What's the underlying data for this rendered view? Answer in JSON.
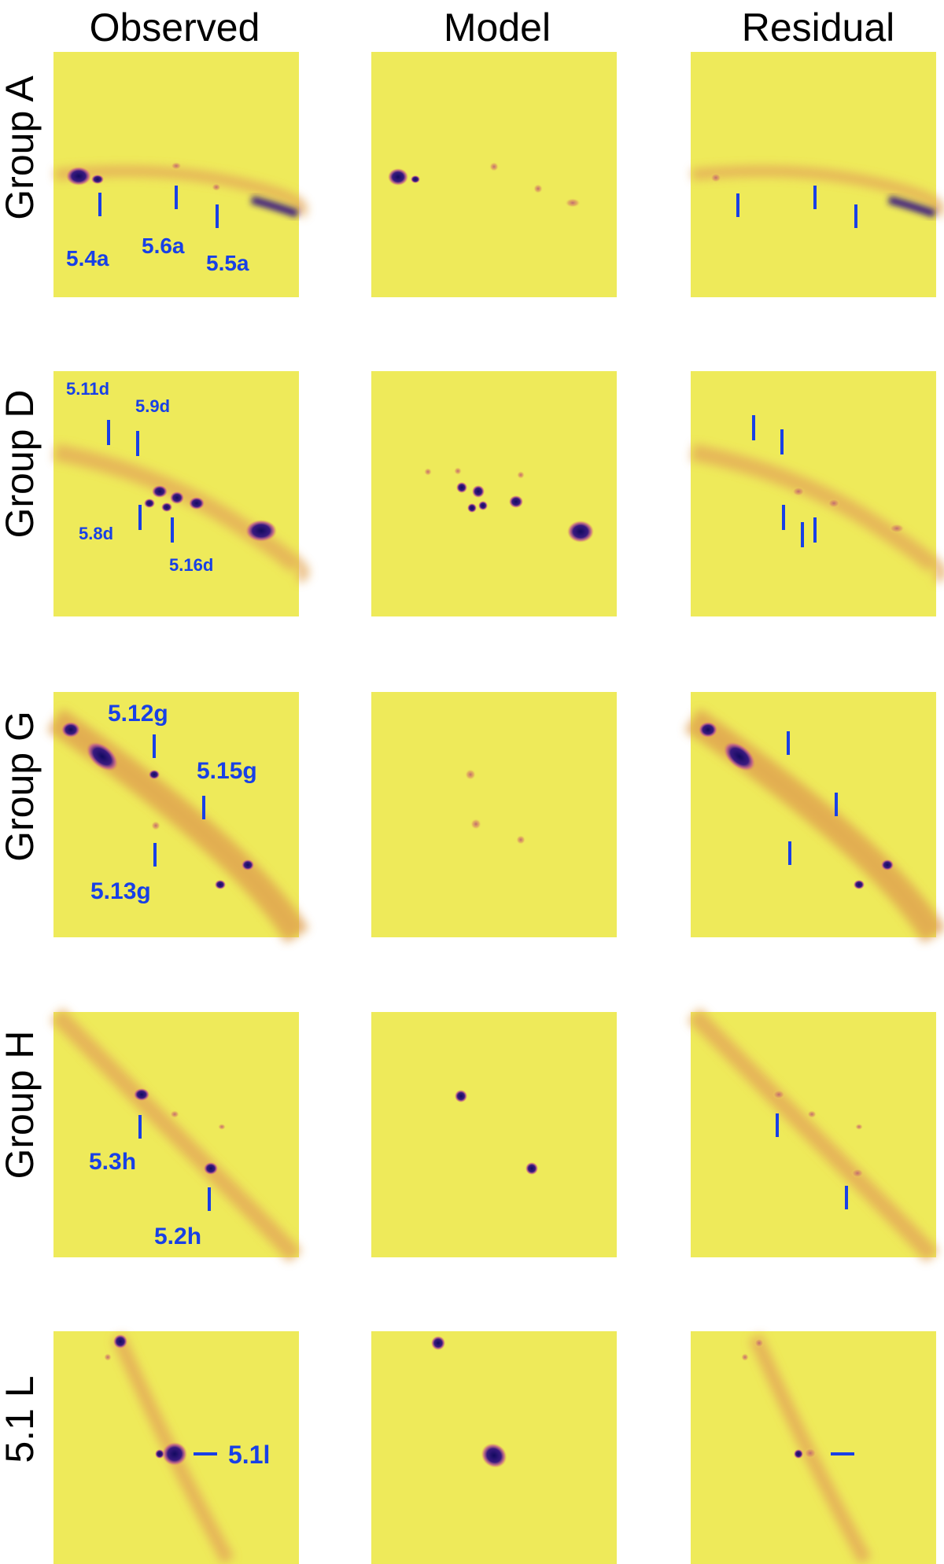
{
  "columns": [
    "Observed",
    "Model",
    "Residual"
  ],
  "rows": [
    {
      "label": "Group A",
      "observed_labels": [
        "5.4a",
        "5.6a",
        "5.5a"
      ],
      "residual_labels": []
    },
    {
      "label": "Group D",
      "observed_labels": [
        "5.11d",
        "5.9d",
        "5.8d",
        "5.16d"
      ],
      "residual_labels": []
    },
    {
      "label": "Group G",
      "observed_labels": [
        "5.12g",
        "5.15g",
        "5.13g"
      ],
      "residual_labels": []
    },
    {
      "label": "Group H",
      "observed_labels": [
        "5.3h",
        "5.2h"
      ],
      "residual_labels": []
    },
    {
      "label": "5.1 L",
      "observed_labels": [
        "5.1l"
      ],
      "residual_labels": []
    }
  ],
  "colors": {
    "background": "#eeea5a",
    "arc": "#e0a050",
    "knot": "#1a1070",
    "label": "#1840e6"
  }
}
